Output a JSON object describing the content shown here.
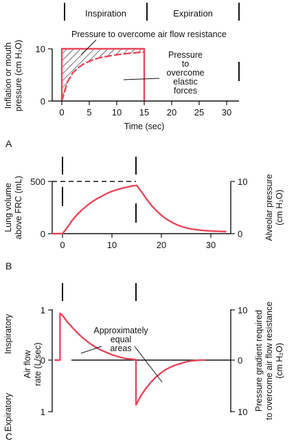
{
  "figure": {
    "accent": "#e8465a",
    "ink": "#111111"
  },
  "chart_data": [
    {
      "panel": "A",
      "type": "area",
      "phases": [
        "Inspiration",
        "Expiration"
      ],
      "ylabel_line1": "Inflation or mouth",
      "ylabel_line2": "pressure (cm H₂O)",
      "xlabel": "Time (sec)",
      "xticks": [
        0,
        5,
        10,
        15,
        20,
        25,
        30
      ],
      "yticks": [
        0,
        10
      ],
      "xlim": [
        -4,
        34
      ],
      "ylim": [
        0,
        10
      ],
      "annotations": {
        "resistance": "Pressure to overcome air flow resistance",
        "elastic": [
          "Pressure",
          "to",
          "overcome",
          "elastic",
          "forces"
        ]
      },
      "series": [
        {
          "x": [
            0,
            0,
            15,
            15
          ],
          "y": [
            0,
            10,
            10,
            0
          ]
        },
        {
          "x": [
            0,
            1,
            2,
            3,
            4,
            5,
            6,
            7,
            8,
            9,
            10,
            11,
            12,
            13,
            14,
            15
          ],
          "y": [
            0,
            3.6,
            5.4,
            6.4,
            7.1,
            7.6,
            8.0,
            8.3,
            8.5,
            8.7,
            8.85,
            9.0,
            9.1,
            9.2,
            9.3,
            9.4
          ]
        }
      ]
    },
    {
      "panel": "B",
      "type": "line",
      "ylabel_left_line1": "Lung volume",
      "ylabel_left_line2": "above FRC (mL)",
      "ylabel_right_line1": "Alveolar pressure",
      "ylabel_right_line2": "(cm H₂O)",
      "xticks": [
        0,
        10,
        20,
        30
      ],
      "yticks_left": [
        0,
        500
      ],
      "yticks_right": [
        0,
        10
      ],
      "xlim": [
        -4,
        36
      ],
      "ylim": [
        0,
        500
      ],
      "series": [
        {
          "x": [
            -2,
            0,
            1,
            2,
            3,
            4,
            5,
            6,
            7,
            8,
            9,
            10,
            11,
            12,
            13,
            14,
            15,
            16,
            17,
            18,
            19,
            20,
            21,
            22,
            23,
            24,
            25,
            26,
            27,
            28,
            30,
            33
          ],
          "y": [
            0,
            0,
            60,
            130,
            185,
            230,
            270,
            305,
            335,
            360,
            385,
            405,
            420,
            435,
            445,
            455,
            462,
            400,
            330,
            270,
            220,
            175,
            140,
            112,
            88,
            70,
            55,
            45,
            38,
            32,
            25,
            20
          ]
        }
      ]
    },
    {
      "panel": "C",
      "type": "line",
      "ylabel_top": "Inspiratory",
      "ylabel_bottom": "Expiratory",
      "ylabel_left_line1": "Air flow",
      "ylabel_left_line2": "rate (L/sec)",
      "ylabel_right_line1": "Pressure gradient required",
      "ylabel_right_line2": "to overcome air flow resistance",
      "ylabel_right_line3": "(cm H₂O)",
      "annotation": [
        "Approximately",
        "equal",
        "areas"
      ],
      "yticks_left": [
        "1",
        "0",
        "1"
      ],
      "yticks_right": [
        "10",
        "0",
        "10"
      ],
      "xlim": [
        -2,
        36
      ],
      "ylim": [
        -1,
        1
      ],
      "series": [
        {
          "x": [
            -1.5,
            -0.5,
            -0.5,
            0,
            1,
            2,
            3,
            4,
            5,
            6,
            7,
            8,
            9,
            10,
            11,
            12,
            13,
            14,
            15,
            15,
            16,
            17,
            18,
            19,
            20,
            21,
            22,
            23,
            24,
            25,
            26,
            27,
            28,
            29
          ],
          "y": [
            0,
            0,
            0.92,
            0.88,
            0.75,
            0.64,
            0.54,
            0.45,
            0.37,
            0.3,
            0.24,
            0.19,
            0.15,
            0.11,
            0.08,
            0.05,
            0.03,
            0.02,
            0.01,
            -0.88,
            -0.7,
            -0.56,
            -0.44,
            -0.34,
            -0.26,
            -0.19,
            -0.14,
            -0.1,
            -0.07,
            -0.04,
            -0.02,
            -0.01,
            0,
            0
          ]
        }
      ]
    }
  ],
  "panel_labels": [
    "A",
    "B",
    "C"
  ]
}
